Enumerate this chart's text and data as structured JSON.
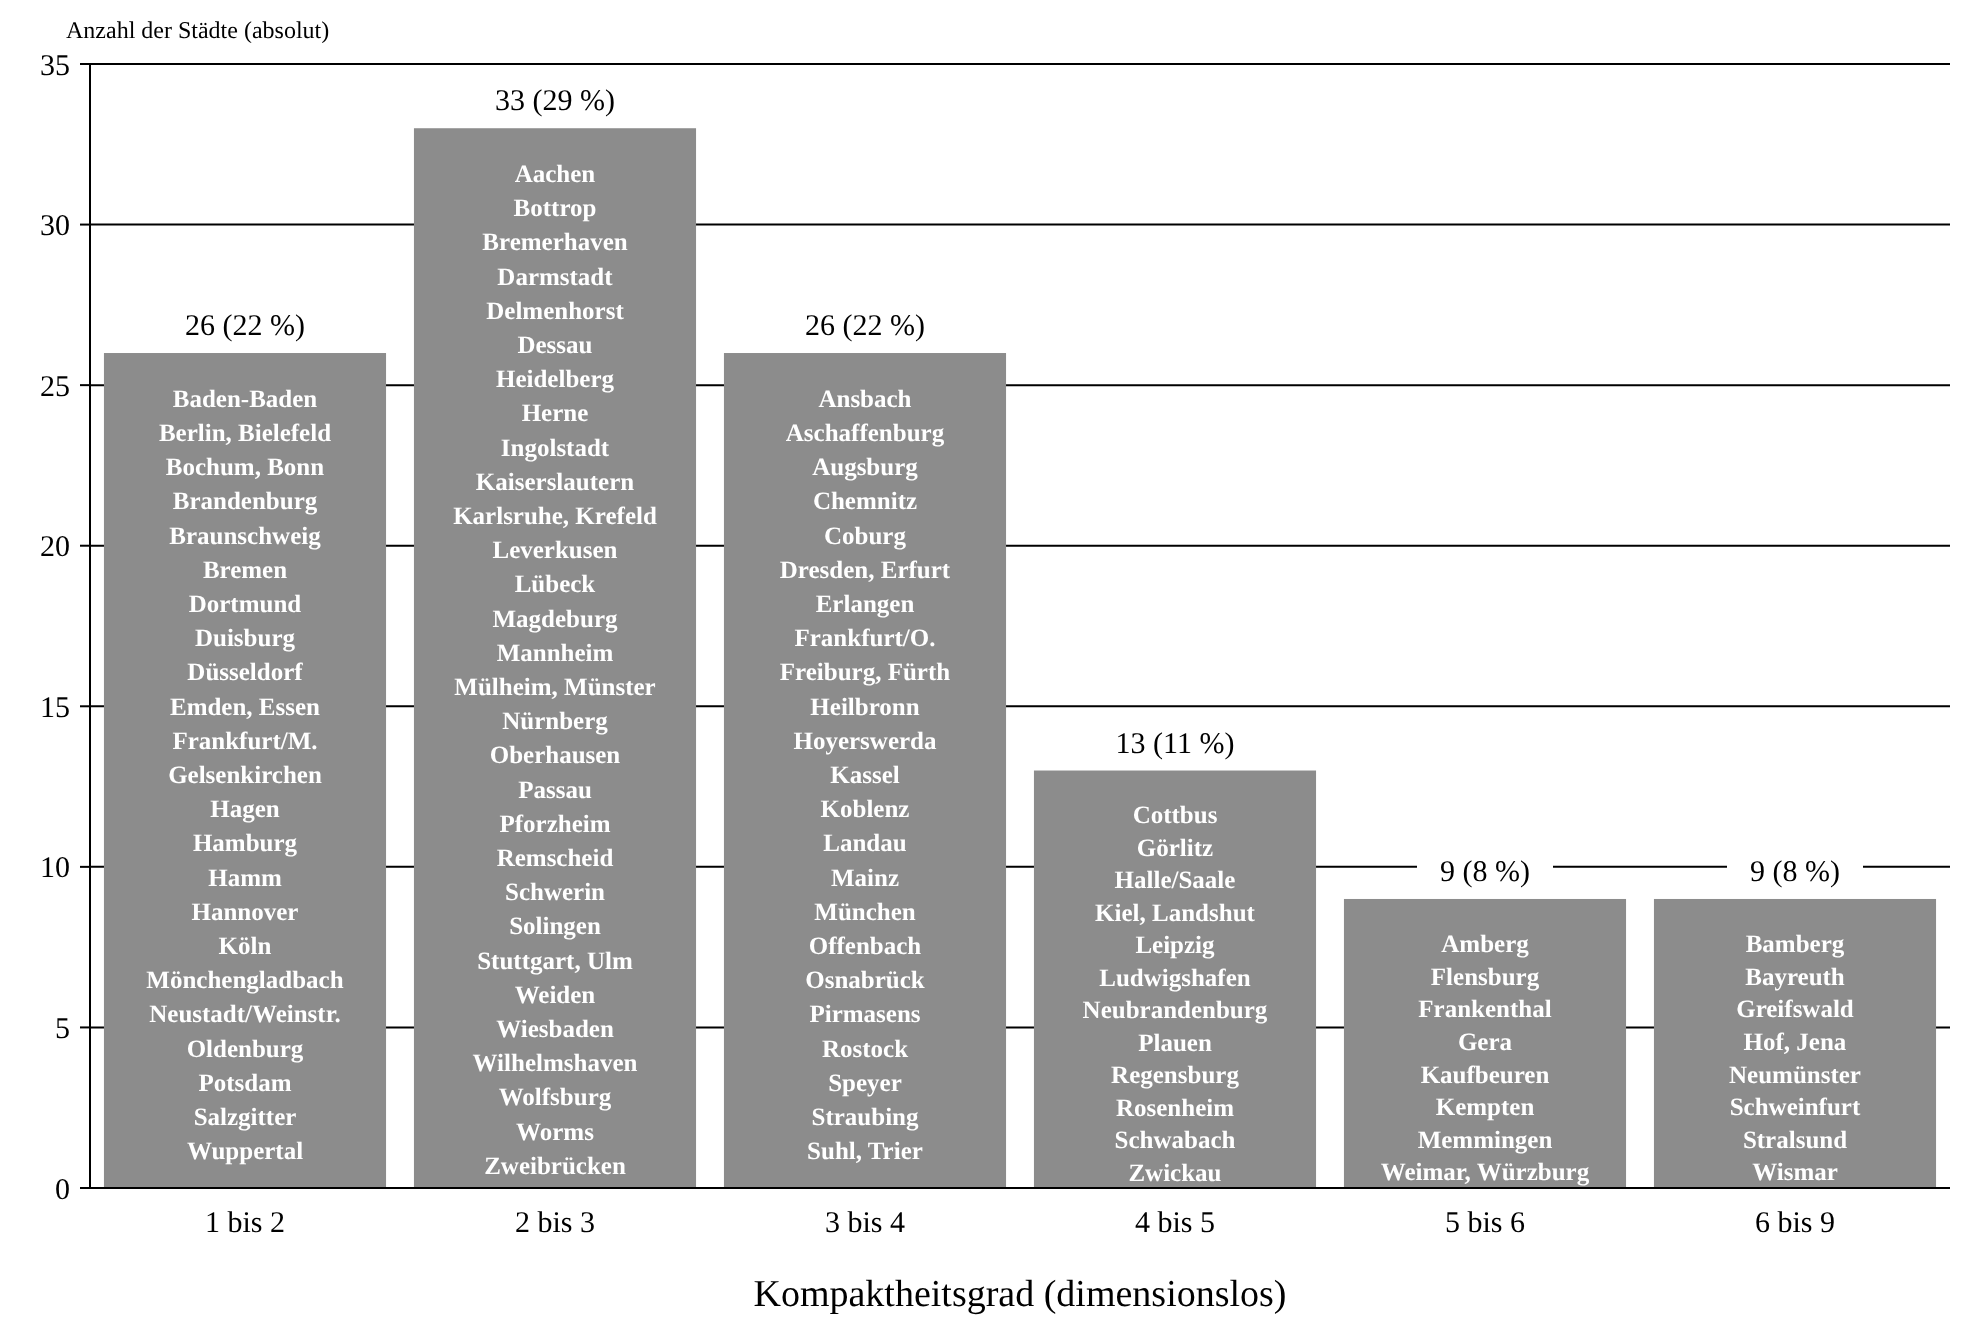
{
  "chart_data": {
    "type": "bar",
    "xlabel": "Kompaktheitsgrad (dimensionslos)",
    "ylabel": "Anzahl der Städte (absolut)",
    "categories": [
      "1 bis 2",
      "2 bis 3",
      "3 bis 4",
      "4 bis 5",
      "5 bis 6",
      "6 bis 9"
    ],
    "values": [
      26,
      33,
      26,
      13,
      9,
      9
    ],
    "value_labels": [
      "26 (22 %)",
      "33 (29 %)",
      "26 (22 %)",
      "13 (11 %)",
      "9 (8 %)",
      "9 (8 %)"
    ],
    "color": "#8c8c8c",
    "ylim": [
      0,
      35
    ],
    "yticks": [
      0,
      5,
      10,
      15,
      20,
      25,
      30,
      35
    ],
    "grid": "y",
    "annotations": [
      "Baden-Baden",
      "Berlin, Bielefeld",
      "Bochum, Bonn",
      "Brandenburg",
      "Braunschweig",
      "Bremen",
      "Dortmund",
      "Duisburg",
      "Düsseldorf",
      "Emden, Essen",
      "Frankfurt/M.",
      "Gelsenkirchen",
      "Hagen",
      "Hamburg",
      "Hamm",
      "Hannover",
      "Köln",
      "Mönchengladbach",
      "Neustadt/Weinstr.",
      "Oldenburg",
      "Potsdam",
      "Salzgitter",
      "Wuppertal",
      "Aachen",
      "Bottrop",
      "Bremerhaven",
      "Darmstadt",
      "Delmenhorst",
      "Dessau",
      "Heidelberg",
      "Herne",
      "Ingolstadt",
      "Kaiserslautern",
      "Karlsruhe, Krefeld",
      "Leverkusen",
      "Lübeck",
      "Magdeburg",
      "Mannheim",
      "Mülheim, Münster",
      "Nürnberg",
      "Oberhausen",
      "Passau",
      "Pforzheim",
      "Remscheid",
      "Schwerin",
      "Solingen",
      "Stuttgart, Ulm",
      "Weiden",
      "Wiesbaden",
      "Wilhelmshaven",
      "Wolfsburg",
      "Worms",
      "Zweibrücken",
      "Ansbach",
      "Aschaffenburg",
      "Augsburg",
      "Chemnitz",
      "Coburg",
      "Dresden, Erfurt",
      "Erlangen",
      "Frankfurt/O.",
      "Freiburg, Fürth",
      "Heilbronn",
      "Hoyerswerda",
      "Kassel",
      "Koblenz",
      "Landau",
      "Mainz",
      "München",
      "Offenbach",
      "Osnabrück",
      "Pirmasens",
      "Rostock",
      "Speyer",
      "Straubing",
      "Suhl, Trier",
      "Cottbus",
      "Görlitz",
      "Halle/Saale",
      "Kiel, Landshut",
      "Leipzig",
      "Ludwigshafen",
      "Neubrandenburg",
      "Plauen",
      "Regensburg",
      "Rosenheim",
      "Schwabach",
      "Zwickau",
      "Amberg",
      "Flensburg",
      "Frankenthal",
      "Gera",
      "Kaufbeuren",
      "Kempten",
      "Memmingen",
      "Weimar, Würzburg",
      "Bamberg",
      "Bayreuth",
      "Greifswald",
      "Hof, Jena",
      "Neumünster",
      "Schweinfurt",
      "Stralsund",
      "Wismar"
    ]
  }
}
